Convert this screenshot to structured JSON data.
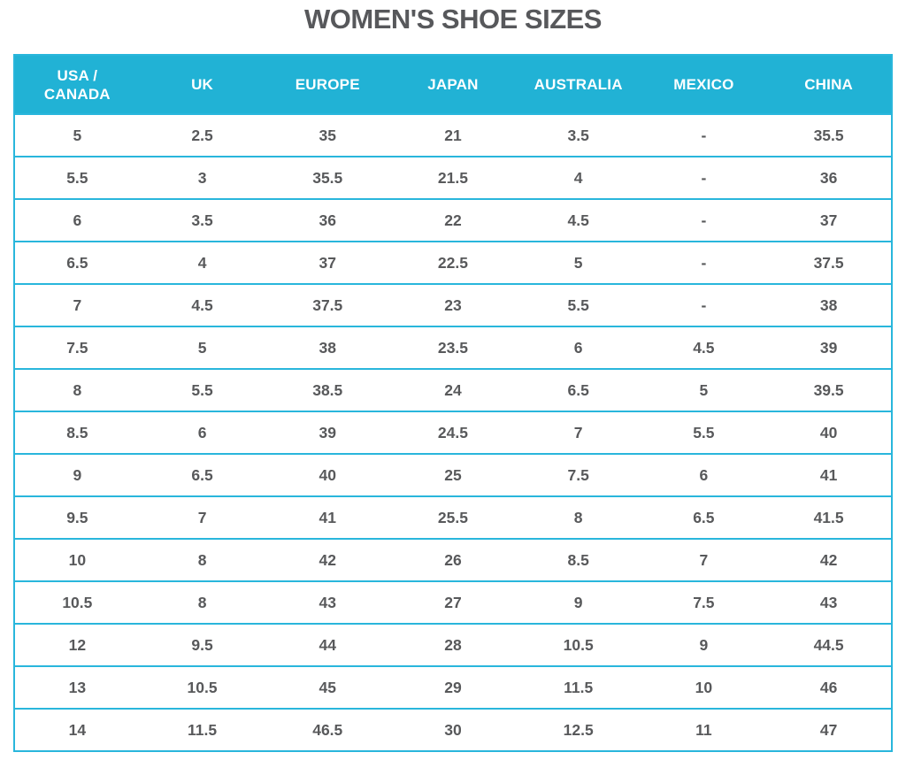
{
  "chart_data": {
    "type": "table",
    "title": "WOMEN'S SHOE SIZES",
    "columns": [
      "USA /\nCANADA",
      "UK",
      "EUROPE",
      "JAPAN",
      "AUSTRALIA",
      "MEXICO",
      "CHINA"
    ],
    "rows": [
      [
        "5",
        "2.5",
        "35",
        "21",
        "3.5",
        "-",
        "35.5"
      ],
      [
        "5.5",
        "3",
        "35.5",
        "21.5",
        "4",
        "-",
        "36"
      ],
      [
        "6",
        "3.5",
        "36",
        "22",
        "4.5",
        "-",
        "37"
      ],
      [
        "6.5",
        "4",
        "37",
        "22.5",
        "5",
        "-",
        "37.5"
      ],
      [
        "7",
        "4.5",
        "37.5",
        "23",
        "5.5",
        "-",
        "38"
      ],
      [
        "7.5",
        "5",
        "38",
        "23.5",
        "6",
        "4.5",
        "39"
      ],
      [
        "8",
        "5.5",
        "38.5",
        "24",
        "6.5",
        "5",
        "39.5"
      ],
      [
        "8.5",
        "6",
        "39",
        "24.5",
        "7",
        "5.5",
        "40"
      ],
      [
        "9",
        "6.5",
        "40",
        "25",
        "7.5",
        "6",
        "41"
      ],
      [
        "9.5",
        "7",
        "41",
        "25.5",
        "8",
        "6.5",
        "41.5"
      ],
      [
        "10",
        "8",
        "42",
        "26",
        "8.5",
        "7",
        "42"
      ],
      [
        "10.5",
        "8",
        "43",
        "27",
        "9",
        "7.5",
        "43"
      ],
      [
        "12",
        "9.5",
        "44",
        "28",
        "10.5",
        "9",
        "44.5"
      ],
      [
        "13",
        "10.5",
        "45",
        "29",
        "11.5",
        "10",
        "46"
      ],
      [
        "14",
        "11.5",
        "46.5",
        "30",
        "12.5",
        "11",
        "47"
      ]
    ]
  },
  "colors": {
    "header_bg": "#21b2d5",
    "border": "#29b6dc",
    "cell_text": "#58595b",
    "title_text": "#57585b"
  }
}
